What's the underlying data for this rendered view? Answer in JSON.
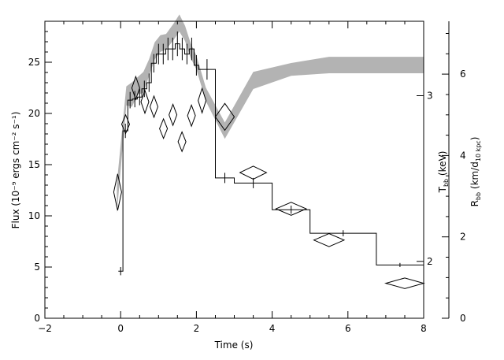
{
  "chart_data": {
    "type": "line",
    "title": "",
    "xlabel": "Time (s)",
    "ylabel": "Flux (10⁻⁹ ergs cm⁻² s⁻¹)",
    "xlim": [
      -2,
      8
    ],
    "ylim": [
      0,
      29
    ],
    "grid": false,
    "x_ticks": [
      -2,
      0,
      2,
      4,
      6,
      8
    ],
    "y_ticks": [
      0,
      5,
      10,
      15,
      20,
      25
    ],
    "right_axes": [
      {
        "label": "T_bb (keV)",
        "scale": "log",
        "range": [
          1.74,
          3.6
        ],
        "ticks": [
          2,
          3
        ]
      },
      {
        "label": "R_bb (km/d_10 kpc)",
        "scale": "linear",
        "range": [
          0,
          7.3
        ],
        "ticks": [
          0,
          2,
          4,
          6
        ]
      }
    ],
    "series": [
      {
        "kind": "step-flux",
        "axis": "flux",
        "edges": [
          -0.06,
          0.06,
          0.19,
          0.31,
          0.44,
          0.56,
          0.69,
          0.81,
          0.94,
          1.06,
          1.19,
          1.31,
          1.44,
          1.56,
          1.69,
          1.81,
          1.94,
          2.06,
          2.5,
          3.0,
          4.0,
          5.0,
          6.75,
          8.0
        ],
        "values": [
          4.6,
          18.3,
          21.3,
          21.4,
          21.6,
          22.4,
          23.0,
          24.9,
          25.8,
          25.8,
          26.3,
          26.3,
          26.8,
          26.3,
          25.8,
          26.3,
          24.7,
          24.3,
          13.7,
          13.2,
          10.6,
          8.3,
          5.2
        ],
        "errors": [
          0.4,
          0.7,
          0.8,
          0.8,
          0.8,
          0.8,
          0.9,
          0.9,
          1.0,
          1.0,
          1.1,
          1.1,
          1.2,
          1.1,
          1.0,
          1.1,
          1.0,
          1.0,
          0.5,
          0.5,
          0.4,
          0.3,
          0.2
        ]
      },
      {
        "kind": "band-temperature",
        "axis": "T_bb",
        "x": [
          -0.1,
          0.15,
          0.3,
          0.45,
          0.6,
          0.75,
          0.9,
          1.05,
          1.2,
          1.4,
          1.55,
          1.7,
          1.85,
          2.0,
          2.25,
          2.75,
          3.5,
          4.5,
          5.5,
          7.0,
          8.0
        ],
        "low": [
          2.25,
          2.93,
          2.92,
          3.01,
          3.02,
          3.15,
          3.28,
          3.34,
          3.36,
          3.44,
          3.51,
          3.43,
          3.29,
          3.2,
          2.96,
          2.7,
          3.05,
          3.15,
          3.17,
          3.17,
          3.17
        ],
        "high": [
          2.42,
          3.07,
          3.1,
          3.14,
          3.18,
          3.28,
          3.42,
          3.48,
          3.49,
          3.58,
          3.66,
          3.56,
          3.41,
          3.31,
          3.06,
          2.81,
          3.18,
          3.25,
          3.3,
          3.3,
          3.3
        ]
      },
      {
        "kind": "diamond-radius",
        "axis": "R_bb",
        "points": [
          {
            "x": -0.08,
            "y": 3.1,
            "xerr": 0.06,
            "yerr": 0.45
          },
          {
            "x": 0.13,
            "y": 4.77,
            "xerr": 0.06,
            "yerr": 0.23
          },
          {
            "x": 0.4,
            "y": 5.66,
            "xerr": 0.06,
            "yerr": 0.28
          },
          {
            "x": 0.64,
            "y": 5.32,
            "xerr": 0.06,
            "yerr": 0.28
          },
          {
            "x": 0.88,
            "y": 5.2,
            "xerr": 0.06,
            "yerr": 0.26
          },
          {
            "x": 1.13,
            "y": 4.66,
            "xerr": 0.06,
            "yerr": 0.24
          },
          {
            "x": 1.38,
            "y": 5.0,
            "xerr": 0.06,
            "yerr": 0.26
          },
          {
            "x": 1.62,
            "y": 4.34,
            "xerr": 0.06,
            "yerr": 0.24
          },
          {
            "x": 1.87,
            "y": 4.98,
            "xerr": 0.06,
            "yerr": 0.26
          },
          {
            "x": 2.15,
            "y": 5.35,
            "xerr": 0.08,
            "yerr": 0.3
          },
          {
            "x": 2.75,
            "y": 4.95,
            "xerr": 0.25,
            "yerr": 0.33
          },
          {
            "x": 3.5,
            "y": 3.58,
            "xerr": 0.35,
            "yerr": 0.16
          },
          {
            "x": 4.5,
            "y": 2.69,
            "xerr": 0.4,
            "yerr": 0.16
          },
          {
            "x": 5.5,
            "y": 1.92,
            "xerr": 0.4,
            "yerr": 0.16
          },
          {
            "x": 7.5,
            "y": 0.86,
            "xerr": 0.5,
            "yerr": 0.13
          }
        ]
      }
    ]
  }
}
